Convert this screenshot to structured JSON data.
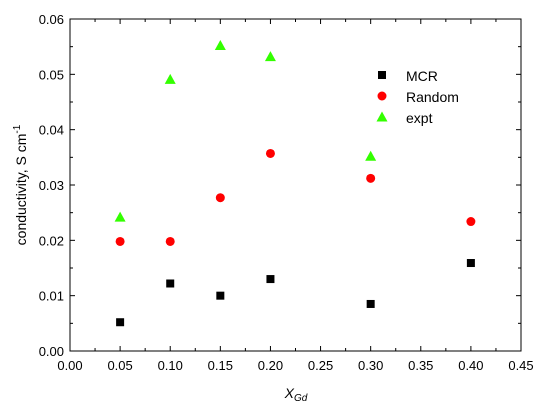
{
  "chart_data": {
    "type": "scatter",
    "xlabel_main": "X",
    "xlabel_sub": "Gd",
    "ylabel_main": "conductivity, S cm",
    "ylabel_sup": "-1",
    "xlim": [
      0.0,
      0.45
    ],
    "ylim": [
      0.0,
      0.06
    ],
    "x_ticks": [
      "0.00",
      "0.05",
      "0.10",
      "0.15",
      "0.20",
      "0.25",
      "0.30",
      "0.35",
      "0.40",
      "0.45"
    ],
    "y_ticks": [
      "0.00",
      "0.01",
      "0.02",
      "0.03",
      "0.04",
      "0.05",
      "0.06"
    ],
    "legend_position": "top-right",
    "grid": false,
    "series": [
      {
        "name": "MCR",
        "marker": "square",
        "color": "#000000",
        "x": [
          0.05,
          0.1,
          0.15,
          0.2,
          0.3,
          0.4
        ],
        "y": [
          0.0052,
          0.0122,
          0.01,
          0.013,
          0.0085,
          0.0159
        ]
      },
      {
        "name": "Random",
        "marker": "circle",
        "color": "#ff0000",
        "x": [
          0.05,
          0.1,
          0.15,
          0.2,
          0.3,
          0.4
        ],
        "y": [
          0.0198,
          0.0198,
          0.0277,
          0.0357,
          0.0312,
          0.0234
        ]
      },
      {
        "name": "expt",
        "marker": "triangle",
        "color": "#33ff00",
        "x": [
          0.05,
          0.1,
          0.15,
          0.2,
          0.3
        ],
        "y": [
          0.0242,
          0.0491,
          0.0552,
          0.0532,
          0.0352
        ]
      }
    ]
  }
}
